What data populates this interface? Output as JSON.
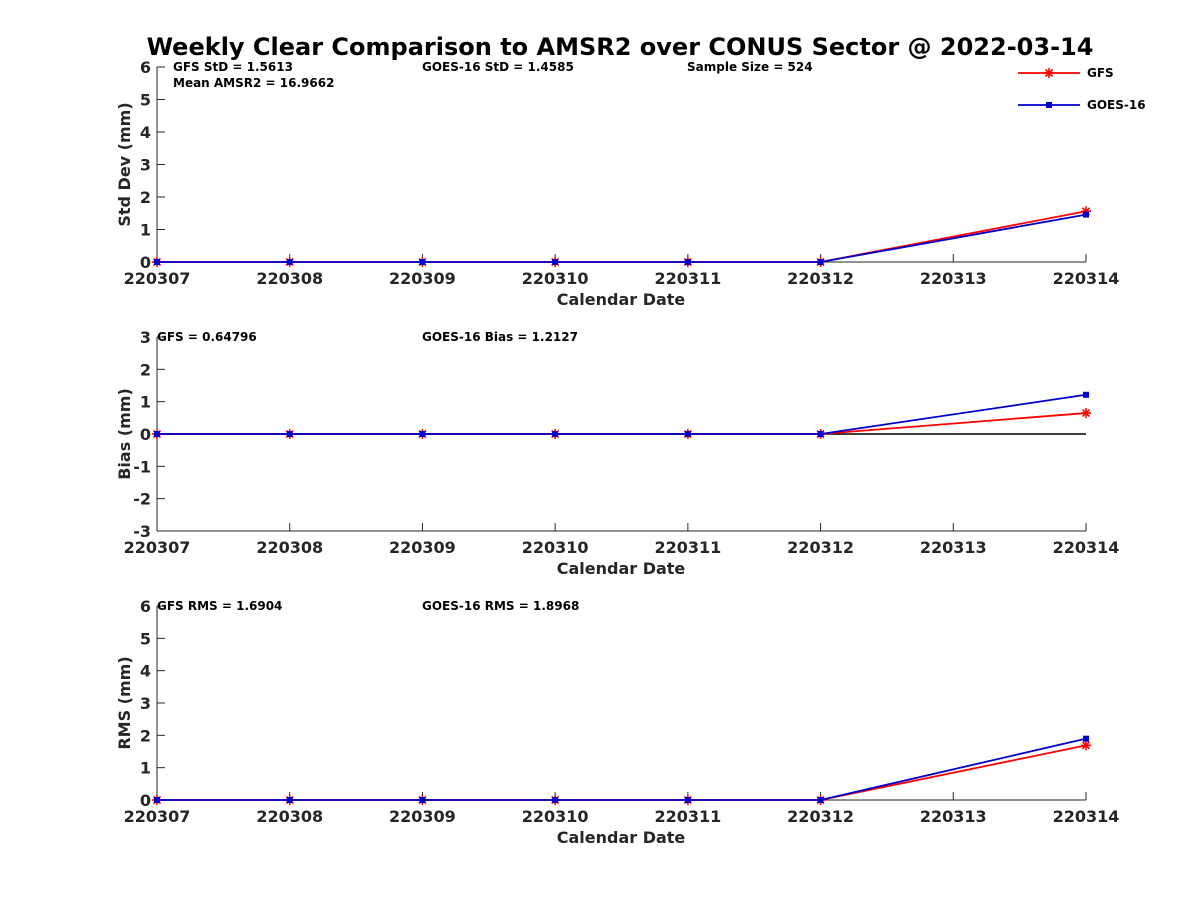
{
  "title": "Weekly Clear Comparison to AMSR2 over CONUS Sector @ 2022-03-14",
  "colors": {
    "GFS": "#ff0000",
    "GOES-16": "#0000cc"
  },
  "legend": {
    "placement": "top-right",
    "entries": [
      {
        "name": "GFS",
        "marker": "asterisk"
      },
      {
        "name": "GOES-16",
        "marker": "square"
      }
    ]
  },
  "chart_data": [
    {
      "type": "line",
      "title": "Weekly Clear Comparison to AMSR2 over CONUS Sector @ 2022-03-14",
      "xlabel": "Calendar Date",
      "ylabel": "Std Dev (mm)",
      "x": [
        "220307",
        "220308",
        "220309",
        "220310",
        "220311",
        "220312",
        "220313",
        "220314"
      ],
      "xticks": [
        "220307",
        "220308",
        "220309",
        "220310",
        "220311",
        "220312",
        "220313",
        "220314"
      ],
      "ylim": [
        0,
        6
      ],
      "yticks": [
        "0",
        "1",
        "2",
        "3",
        "4",
        "5",
        "6"
      ],
      "zero_line": false,
      "series": [
        {
          "name": "GFS",
          "values": [
            0,
            0,
            0,
            0,
            0,
            0,
            null,
            1.5613
          ]
        },
        {
          "name": "GOES-16",
          "values": [
            0,
            0,
            0,
            0,
            0,
            0,
            null,
            1.4585
          ]
        }
      ],
      "annotations": [
        [
          "GFS StD = 1.5613",
          "Mean AMSR2 = 16.9662"
        ],
        [
          "GOES-16 StD = 1.4585"
        ],
        [
          "Sample Size = 524"
        ]
      ]
    },
    {
      "type": "line",
      "xlabel": "Calendar Date",
      "ylabel": "Bias (mm)",
      "x": [
        "220307",
        "220308",
        "220309",
        "220310",
        "220311",
        "220312",
        "220313",
        "220314"
      ],
      "xticks": [
        "220307",
        "220308",
        "220309",
        "220310",
        "220311",
        "220312",
        "220313",
        "220314"
      ],
      "ylim": [
        -3,
        3
      ],
      "yticks": [
        "-3",
        "-2",
        "-1",
        "0",
        "1",
        "2",
        "3"
      ],
      "zero_line": true,
      "series": [
        {
          "name": "GFS",
          "values": [
            0,
            0,
            0,
            0,
            0,
            0,
            null,
            0.64796
          ]
        },
        {
          "name": "GOES-16",
          "values": [
            0,
            0,
            0,
            0,
            0,
            0,
            null,
            1.2127
          ]
        }
      ],
      "annotations": [
        [
          "GFS = 0.64796"
        ],
        [
          "GOES-16 Bias  = 1.2127"
        ]
      ]
    },
    {
      "type": "line",
      "xlabel": "Calendar Date",
      "ylabel": "RMS (mm)",
      "x": [
        "220307",
        "220308",
        "220309",
        "220310",
        "220311",
        "220312",
        "220313",
        "220314"
      ],
      "xticks": [
        "220307",
        "220308",
        "220309",
        "220310",
        "220311",
        "220312",
        "220313",
        "220314"
      ],
      "ylim": [
        0,
        6
      ],
      "yticks": [
        "0",
        "1",
        "2",
        "3",
        "4",
        "5",
        "6"
      ],
      "zero_line": false,
      "series": [
        {
          "name": "GFS",
          "values": [
            0,
            0,
            0,
            0,
            0,
            0,
            null,
            1.6904
          ]
        },
        {
          "name": "GOES-16",
          "values": [
            0,
            0,
            0,
            0,
            0,
            0,
            null,
            1.8968
          ]
        }
      ],
      "annotations": [
        [
          "GFS RMS = 1.6904"
        ],
        [
          "GOES-16 RMS = 1.8968"
        ]
      ]
    }
  ]
}
